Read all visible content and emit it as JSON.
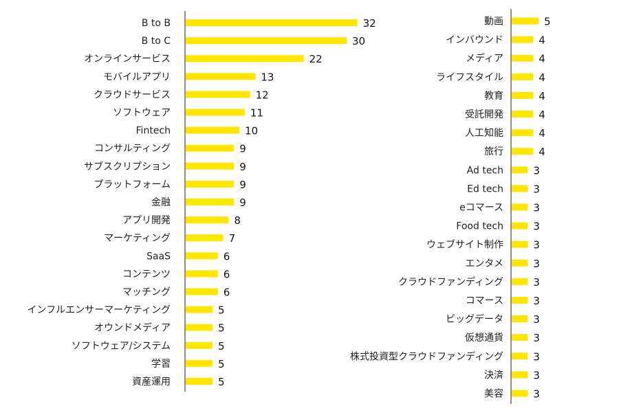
{
  "colors": {
    "bar": "#ffe600",
    "axis": "#222222",
    "text": "#222222",
    "background": "#ffffff"
  },
  "chart_data": [
    {
      "type": "bar",
      "orientation": "horizontal",
      "title": "",
      "xlabel": "",
      "ylabel": "",
      "xlim": [
        0,
        32
      ],
      "categories": [
        "B to B",
        "B to C",
        "オンラインサービス",
        "モバイルアプリ",
        "クラウドサービス",
        "ソフトウェア",
        "Fintech",
        "コンサルティング",
        "サブスクリプション",
        "プラットフォーム",
        "金融",
        "アプリ開発",
        "マーケティング",
        "SaaS",
        "コンテンツ",
        "マッチング",
        "インフルエンサーマーケティング",
        "オウンドメディア",
        "ソフトウェア/システム",
        "学習",
        "資産運用"
      ],
      "values": [
        32,
        30,
        22,
        13,
        12,
        11,
        10,
        9,
        9,
        9,
        9,
        8,
        7,
        6,
        6,
        6,
        5,
        5,
        5,
        5,
        5
      ]
    },
    {
      "type": "bar",
      "orientation": "horizontal",
      "title": "",
      "xlabel": "",
      "ylabel": "",
      "xlim": [
        0,
        32
      ],
      "categories": [
        "動画",
        "インバウンド",
        "メディア",
        "ライフスタイル",
        "教育",
        "受託開発",
        "人工知能",
        "旅行",
        "Ad tech",
        "Ed tech",
        "eコマース",
        "Food tech",
        "ウェブサイト制作",
        "エンタメ",
        "クラウドファンディング",
        "コマース",
        "ビッグデータ",
        "仮想通貨",
        "株式投資型クラウドファンディング",
        "決済",
        "美容"
      ],
      "values": [
        5,
        4,
        4,
        4,
        4,
        4,
        4,
        4,
        3,
        3,
        3,
        3,
        3,
        3,
        3,
        3,
        3,
        3,
        3,
        3,
        3
      ]
    }
  ]
}
